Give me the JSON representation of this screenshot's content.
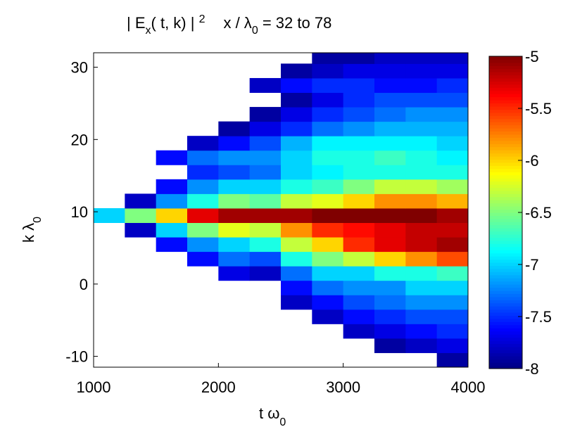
{
  "chart_data": {
    "type": "heatmap",
    "title": [
      "| E",
      "x",
      "( t, k) | ",
      "2",
      "x / λ",
      "0",
      " = 32 to 78"
    ],
    "xlabel": [
      "t ω",
      "0"
    ],
    "ylabel": [
      "k  λ",
      "0"
    ],
    "xlim": [
      1000,
      4000
    ],
    "xticks": [
      1000,
      2000,
      3000,
      4000
    ],
    "ylim": [
      -11.5,
      32
    ],
    "yticks": [
      -10,
      0,
      10,
      20,
      30
    ],
    "xbins": [
      1000,
      1250,
      1500,
      1750,
      2000,
      2250,
      2500,
      2750,
      3000,
      3250,
      3500,
      3750,
      4000
    ],
    "ybins": [
      -11.5,
      -9.5,
      -7.5,
      -5.5,
      -3.5,
      -1.5,
      0.5,
      2.5,
      4.5,
      6.5,
      8.5,
      10.5,
      12.5,
      14.5,
      16.5,
      18.5,
      20.5,
      22.5,
      24.5,
      26.5,
      28.5,
      30.5,
      32
    ],
    "z": [
      [
        null,
        null,
        null,
        null,
        null,
        null,
        null,
        null,
        null,
        null,
        null,
        -7.9
      ],
      [
        null,
        null,
        null,
        null,
        null,
        null,
        null,
        null,
        null,
        -7.9,
        -7.8,
        -7.7
      ],
      [
        null,
        null,
        null,
        null,
        null,
        null,
        null,
        null,
        -7.8,
        -7.7,
        -7.6,
        -7.5
      ],
      [
        null,
        null,
        null,
        null,
        null,
        null,
        null,
        -7.8,
        -7.6,
        -7.5,
        -7.4,
        -7.4
      ],
      [
        null,
        null,
        null,
        null,
        null,
        null,
        -7.8,
        -7.6,
        -7.4,
        -7.3,
        -7.2,
        -7.2
      ],
      [
        null,
        null,
        null,
        null,
        null,
        null,
        -7.6,
        -7.3,
        -7.2,
        -7.2,
        -7,
        -7
      ],
      [
        null,
        null,
        null,
        null,
        -7.7,
        -7.8,
        -7.3,
        -7,
        -7,
        -6.8,
        -6.8,
        -6.7
      ],
      [
        null,
        null,
        null,
        -7.6,
        -7.3,
        -7.4,
        -6.8,
        -6.5,
        -6.3,
        -6,
        -5.8,
        -5.6
      ],
      [
        null,
        null,
        -7.6,
        -7.2,
        -7,
        -6.8,
        -6.3,
        -6,
        -5.5,
        -5.3,
        -5.2,
        -5.1
      ],
      [
        null,
        -7.8,
        -7,
        -6.5,
        -6.2,
        -6.3,
        -5.8,
        -5.5,
        -5.4,
        -5.3,
        -5.2,
        -5.2
      ],
      [
        -7,
        -6.5,
        -6,
        -5.3,
        -5.1,
        -5.1,
        -5.1,
        -5,
        -5,
        -5,
        -5,
        -5.1
      ],
      [
        null,
        -7.8,
        -7.2,
        -6.8,
        -6.5,
        -6.6,
        -6.3,
        -6.2,
        -6,
        -5.8,
        -5.8,
        -5.9
      ],
      [
        null,
        null,
        -7.6,
        -7.2,
        -7,
        -7,
        -6.8,
        -6.7,
        -6.5,
        -6.3,
        -6.3,
        -6.4
      ],
      [
        null,
        null,
        null,
        -7.5,
        -7.4,
        -7.3,
        -7,
        -6.9,
        -6.8,
        -6.8,
        -6.8,
        -6.8
      ],
      [
        null,
        null,
        -7.6,
        -7.3,
        -7.2,
        -7.2,
        -7,
        -6.8,
        -6.8,
        -6.7,
        -6.8,
        -6.9
      ],
      [
        null,
        null,
        null,
        -7.8,
        -7.6,
        -7.4,
        -7.1,
        -6.9,
        -6.9,
        -6.9,
        -6.9,
        -7
      ],
      [
        null,
        null,
        null,
        null,
        -7.9,
        -7.7,
        -7.5,
        -7.3,
        -7.2,
        -7.1,
        -7.1,
        -7.1
      ],
      [
        null,
        null,
        null,
        null,
        null,
        -7.9,
        -7.7,
        -7.5,
        -7.4,
        -7.3,
        -7.2,
        -7.2
      ],
      [
        null,
        null,
        null,
        null,
        null,
        null,
        -7.9,
        -7.7,
        -7.5,
        -7.4,
        -7.4,
        -7.4
      ],
      [
        null,
        null,
        null,
        null,
        null,
        -7.8,
        -7.6,
        -7.5,
        -7.5,
        -7.6,
        -7.6,
        -7.5
      ],
      [
        null,
        null,
        null,
        null,
        null,
        null,
        -7.9,
        -7.8,
        -7.7,
        -7.7,
        -7.7,
        -7.7
      ],
      [
        null,
        null,
        null,
        null,
        null,
        null,
        null,
        -7.9,
        -7.9,
        -7.8,
        -7.8,
        -7.8
      ]
    ],
    "colormap": "jet",
    "clim": [
      -8,
      -5
    ],
    "cticks": [
      -8,
      -7.5,
      -7,
      -6.5,
      -6,
      -5.5,
      -5
    ]
  }
}
